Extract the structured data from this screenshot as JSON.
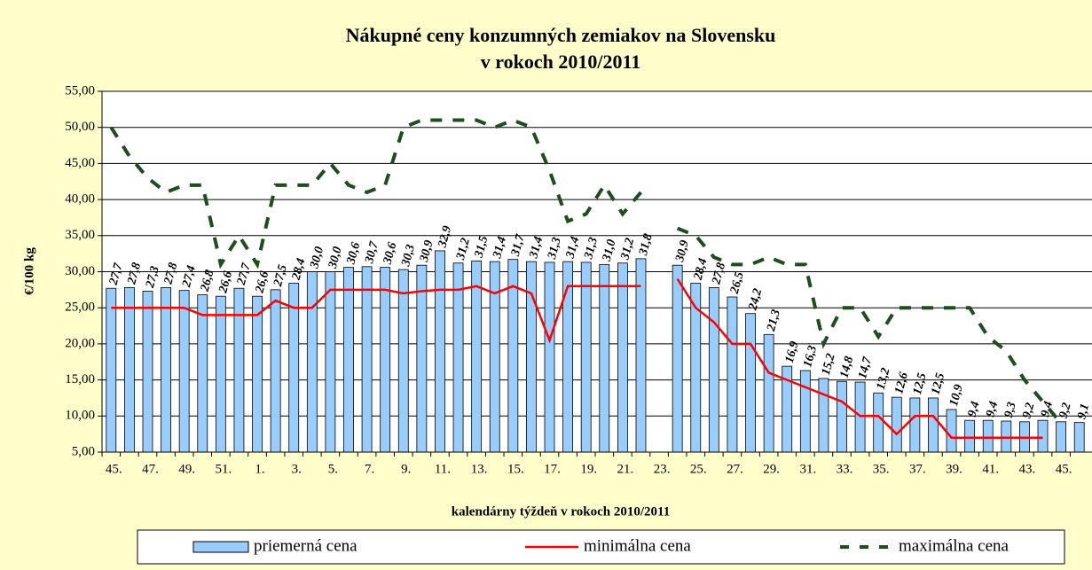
{
  "chart_data": {
    "type": "bar_line",
    "title": [
      "Nákupné ceny konzumných zemiakov na Slovensku",
      "v rokoch 2010/2011"
    ],
    "x_label": "kalendárny týždeň v rokoch 2010/2011",
    "y_label": "€/100 kg",
    "categories": [
      "45.",
      null,
      "47.",
      null,
      "49.",
      null,
      "51.",
      null,
      "1.",
      null,
      "3.",
      null,
      "5.",
      null,
      "7.",
      null,
      "9.",
      null,
      "11.",
      null,
      "13.",
      null,
      "15.",
      null,
      "17.",
      null,
      "19.",
      null,
      "21.",
      null,
      "23.",
      null,
      "25.",
      null,
      "27.",
      null,
      "29.",
      null,
      "31.",
      null,
      "33.",
      null,
      "35.",
      null,
      "37.",
      null,
      "39.",
      null,
      "41.",
      null,
      "43.",
      null,
      "45.",
      null
    ],
    "ylim": [
      5,
      55
    ],
    "yticks": [
      {
        "value": 5,
        "label": "5,00"
      },
      {
        "value": 10,
        "label": "10,00"
      },
      {
        "value": 15,
        "label": "15,00"
      },
      {
        "value": 20,
        "label": "20,00"
      },
      {
        "value": 25,
        "label": "25,00"
      },
      {
        "value": 30,
        "label": "30,00"
      },
      {
        "value": 35,
        "label": "35,00"
      },
      {
        "value": 40,
        "label": "40,00"
      },
      {
        "value": 45,
        "label": "45,00"
      },
      {
        "value": 50,
        "label": "50,00"
      },
      {
        "value": 55,
        "label": "55,00"
      }
    ],
    "series": [
      {
        "name": "priemerná cena",
        "kind": "bar",
        "color": "#99ccff",
        "values": [
          27.7,
          27.8,
          27.3,
          27.8,
          27.4,
          26.8,
          26.6,
          27.7,
          26.6,
          27.5,
          28.4,
          30.0,
          30.0,
          30.6,
          30.7,
          30.6,
          30.3,
          30.9,
          32.9,
          31.2,
          31.5,
          31.4,
          31.7,
          31.4,
          31.3,
          31.4,
          31.3,
          31.0,
          31.2,
          31.8,
          null,
          30.9,
          28.4,
          27.8,
          26.5,
          24.2,
          21.3,
          16.9,
          16.3,
          15.2,
          14.8,
          14.7,
          13.2,
          12.6,
          12.5,
          12.5,
          10.9,
          9.4,
          9.4,
          9.3,
          9.2,
          9.4,
          9.2,
          9.1
        ],
        "value_labels": [
          "27,7",
          "27,8",
          "27,3",
          "27,8",
          "27,4",
          "26,8",
          "26,6",
          "27,7",
          "26,6",
          "27,5",
          "28,4",
          "30,0",
          "30,0",
          "30,6",
          "30,7",
          "30,6",
          "30,3",
          "30,9",
          "32,9",
          "31,2",
          "31,5",
          "31,4",
          "31,7",
          "31,4",
          "31,3",
          "31,4",
          "31,3",
          "31,0",
          "31,2",
          "31,8",
          null,
          "30,9",
          "28,4",
          "27,8",
          "26,5",
          "24,2",
          "21,3",
          "16,9",
          "16,3",
          "15,2",
          "14,8",
          "14,7",
          "13,2",
          "12,6",
          "12,5",
          "12,5",
          "10,9",
          "9,4",
          "9,4",
          "9,3",
          "9,2",
          "9,4",
          "9,2",
          "9,1"
        ]
      },
      {
        "name": "minimálna cena",
        "kind": "line",
        "color": "#ff0000",
        "values": [
          25,
          25,
          25,
          25,
          25,
          24,
          24,
          24,
          24,
          26,
          25,
          25,
          27.5,
          27.5,
          27.5,
          27.5,
          27,
          27.3,
          27.5,
          27.5,
          28,
          27,
          28,
          27,
          20.5,
          28,
          28,
          28,
          28,
          28,
          null,
          29,
          25,
          23,
          20,
          20,
          16,
          15,
          14,
          13,
          12,
          10,
          10,
          7.5,
          10,
          10,
          7,
          7,
          7,
          7,
          7,
          7,
          null,
          null
        ]
      },
      {
        "name": "maximálna cena",
        "kind": "dashed",
        "color": "#1e4d1e",
        "values": [
          50,
          46,
          43,
          41,
          42,
          42,
          31,
          35,
          31,
          42,
          42,
          42,
          45,
          42,
          41,
          42,
          50,
          51,
          51,
          51,
          51,
          50,
          51,
          50,
          44,
          37,
          38,
          42,
          38,
          41,
          null,
          36,
          35,
          32,
          31,
          31,
          32,
          31,
          31,
          20,
          25,
          25,
          21,
          25,
          25,
          25,
          25,
          25,
          21,
          19,
          15,
          12,
          9,
          null
        ]
      }
    ]
  }
}
